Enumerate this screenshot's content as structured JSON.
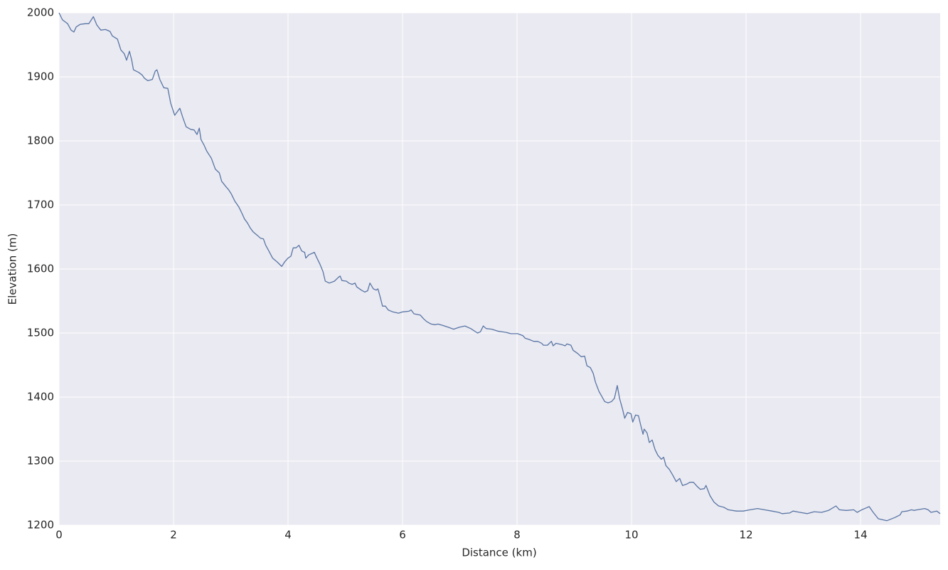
{
  "chart_data": {
    "type": "line",
    "x_label": "Distance (km)",
    "y_label": "Elevation (m)",
    "x": [
      0.0,
      0.06,
      0.15,
      0.21,
      0.26,
      0.3,
      0.37,
      0.46,
      0.52,
      0.6,
      0.66,
      0.73,
      0.81,
      0.89,
      0.93,
      1.02,
      1.08,
      1.14,
      1.18,
      1.23,
      1.27,
      1.3,
      1.39,
      1.45,
      1.49,
      1.55,
      1.63,
      1.68,
      1.71,
      1.76,
      1.83,
      1.9,
      1.95,
      2.02,
      2.11,
      2.16,
      2.22,
      2.3,
      2.36,
      2.41,
      2.45,
      2.48,
      2.53,
      2.58,
      2.66,
      2.73,
      2.8,
      2.84,
      2.92,
      2.96,
      3.01,
      3.07,
      3.14,
      3.2,
      3.24,
      3.29,
      3.34,
      3.39,
      3.47,
      3.52,
      3.57,
      3.61,
      3.66,
      3.73,
      3.81,
      3.89,
      3.94,
      4.0,
      4.05,
      4.09,
      4.14,
      4.19,
      4.24,
      4.29,
      4.31,
      4.36,
      4.46,
      4.5,
      4.56,
      4.61,
      4.65,
      4.72,
      4.81,
      4.88,
      4.91,
      4.94,
      5.02,
      5.06,
      5.12,
      5.17,
      5.2,
      5.28,
      5.34,
      5.39,
      5.43,
      5.49,
      5.54,
      5.57,
      5.61,
      5.65,
      5.7,
      5.75,
      5.83,
      5.93,
      6.0,
      6.11,
      6.15,
      6.2,
      6.31,
      6.37,
      6.42,
      6.5,
      6.57,
      6.62,
      6.7,
      6.8,
      6.89,
      6.99,
      7.09,
      7.19,
      7.31,
      7.36,
      7.41,
      7.46,
      7.56,
      7.66,
      7.81,
      7.89,
      8.01,
      8.1,
      8.14,
      8.21,
      8.29,
      8.36,
      8.43,
      8.46,
      8.53,
      8.6,
      8.63,
      8.68,
      8.78,
      8.84,
      8.87,
      8.94,
      8.98,
      9.06,
      9.12,
      9.18,
      9.22,
      9.28,
      9.33,
      9.37,
      9.43,
      9.48,
      9.53,
      9.59,
      9.65,
      9.7,
      9.75,
      9.79,
      9.84,
      9.88,
      9.93,
      9.99,
      10.02,
      10.07,
      10.12,
      10.16,
      10.2,
      10.22,
      10.27,
      10.31,
      10.36,
      10.41,
      10.46,
      10.52,
      10.56,
      10.6,
      10.66,
      10.72,
      10.78,
      10.84,
      10.89,
      10.96,
      11.02,
      11.08,
      11.14,
      11.2,
      11.27,
      11.3,
      11.37,
      11.44,
      11.52,
      11.61,
      11.69,
      11.83,
      11.95,
      12.07,
      12.2,
      12.32,
      12.45,
      12.57,
      12.63,
      12.76,
      12.82,
      12.94,
      13.07,
      13.19,
      13.32,
      13.44,
      13.57,
      13.63,
      13.75,
      13.88,
      13.94,
      14.02,
      14.1,
      14.15,
      14.22,
      14.31,
      14.46,
      14.6,
      14.69,
      14.72,
      14.81,
      14.89,
      14.93,
      14.99,
      15.12,
      15.18,
      15.23,
      15.33,
      15.39
    ],
    "values": [
      2000,
      1989,
      1983,
      1973,
      1970,
      1978,
      1982,
      1983,
      1983,
      1994,
      1981,
      1973,
      1974,
      1971,
      1964,
      1959,
      1942,
      1936,
      1926,
      1940,
      1926,
      1911,
      1907,
      1903,
      1898,
      1894,
      1896,
      1909,
      1911,
      1896,
      1883,
      1882,
      1859,
      1840,
      1851,
      1837,
      1822,
      1818,
      1817,
      1810,
      1820,
      1802,
      1794,
      1784,
      1773,
      1756,
      1750,
      1737,
      1728,
      1724,
      1717,
      1706,
      1697,
      1686,
      1678,
      1672,
      1664,
      1658,
      1652,
      1648,
      1647,
      1637,
      1629,
      1617,
      1611,
      1604,
      1611,
      1617,
      1620,
      1633,
      1633,
      1637,
      1628,
      1626,
      1617,
      1622,
      1626,
      1618,
      1607,
      1596,
      1581,
      1578,
      1581,
      1587,
      1589,
      1582,
      1581,
      1578,
      1576,
      1578,
      1572,
      1567,
      1564,
      1566,
      1578,
      1569,
      1567,
      1569,
      1556,
      1542,
      1542,
      1536,
      1533,
      1531,
      1533,
      1534,
      1536,
      1530,
      1528,
      1522,
      1518,
      1514,
      1513,
      1514,
      1512,
      1509,
      1506,
      1509,
      1511,
      1507,
      1500,
      1502,
      1511,
      1507,
      1506,
      1503,
      1501,
      1499,
      1499,
      1496,
      1492,
      1490,
      1487,
      1487,
      1484,
      1481,
      1481,
      1487,
      1480,
      1484,
      1482,
      1480,
      1483,
      1481,
      1473,
      1468,
      1463,
      1464,
      1449,
      1446,
      1437,
      1423,
      1409,
      1401,
      1393,
      1391,
      1393,
      1398,
      1418,
      1398,
      1382,
      1367,
      1376,
      1374,
      1361,
      1372,
      1371,
      1356,
      1342,
      1350,
      1344,
      1329,
      1333,
      1318,
      1309,
      1303,
      1306,
      1293,
      1287,
      1278,
      1268,
      1273,
      1262,
      1264,
      1267,
      1267,
      1261,
      1256,
      1257,
      1262,
      1246,
      1236,
      1230,
      1228,
      1224,
      1222,
      1222,
      1224,
      1226,
      1224,
      1222,
      1220,
      1218,
      1219,
      1222,
      1220,
      1218,
      1221,
      1220,
      1223,
      1230,
      1224,
      1223,
      1224,
      1220,
      1224,
      1227,
      1229,
      1220,
      1210,
      1207,
      1212,
      1216,
      1221,
      1222,
      1224,
      1223,
      1224,
      1226,
      1224,
      1220,
      1222,
      1218
    ],
    "color": "#5975a4",
    "xlim": [
      0,
      15.39
    ],
    "ylim": [
      1200,
      2000
    ],
    "xticks": [
      0,
      2,
      4,
      6,
      8,
      10,
      12,
      14
    ],
    "yticks": [
      1200,
      1300,
      1400,
      1500,
      1600,
      1700,
      1800,
      1900,
      2000
    ],
    "grid": true
  }
}
